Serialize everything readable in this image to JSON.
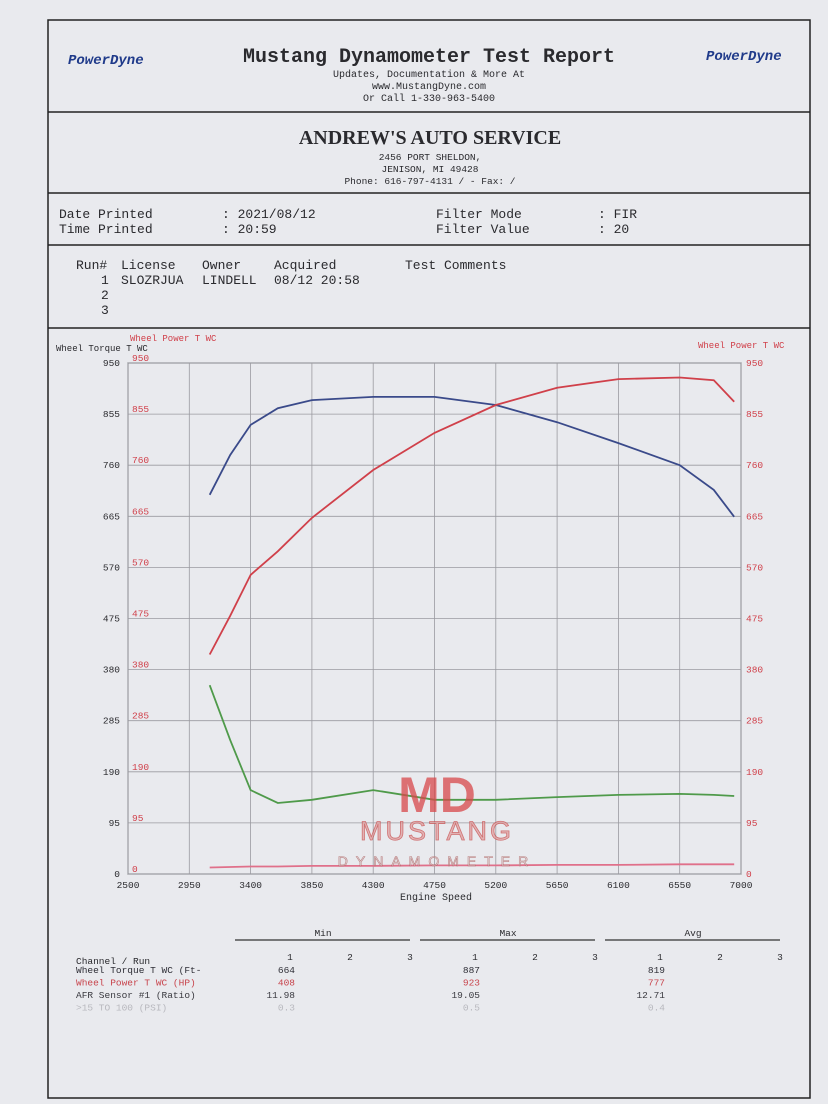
{
  "header": {
    "logo_left": "PowerDyne",
    "logo_right": "PowerDyne",
    "title": "Mustang Dynamometer Test Report",
    "lines": [
      "Updates, Documentation & More At",
      "www.MustangDyne.com",
      "Or Call 1-330-963-5400"
    ]
  },
  "shop": {
    "name": "ANDREW'S AUTO SERVICE",
    "lines": [
      "2456 PORT SHELDON,",
      "JENISON, MI  49428",
      "Phone: 616-797-4131 /  - Fax:  /"
    ]
  },
  "print_info": {
    "date_label": "Date Printed",
    "date": ": 2021/08/12",
    "time_label": "Time Printed",
    "time": ": 20:59",
    "filter_mode_label": "Filter Mode",
    "filter_mode": ": FIR",
    "filter_value_label": "Filter Value",
    "filter_value": ": 20"
  },
  "runs": {
    "columns": [
      "Run#",
      "License",
      "Owner",
      "Acquired",
      "Test Comments"
    ],
    "rows": [
      [
        "1",
        "SLOZRJUA",
        "LINDELL",
        "08/12 20:58"
      ],
      [
        "2"
      ],
      [
        "3"
      ]
    ]
  },
  "chart_data": {
    "type": "line",
    "x_label": "Engine Speed",
    "y_label": "Wheel Torque T WC",
    "y2_label": "Wheel Power T WC",
    "xlim": [
      2500,
      7000
    ],
    "xticks": [
      2500,
      2950,
      3400,
      3850,
      4300,
      4750,
      5200,
      5650,
      6100,
      6550,
      7000
    ],
    "ylim": [
      0,
      950
    ],
    "yticks": [
      0,
      95,
      190,
      285,
      380,
      475,
      570,
      665,
      760,
      855,
      950
    ],
    "y2lim": [
      0,
      950
    ],
    "y2ticks": [
      0,
      95,
      190,
      285,
      380,
      475,
      570,
      665,
      760,
      855,
      950
    ],
    "grid": true,
    "x": [
      3100,
      3250,
      3400,
      3600,
      3850,
      4300,
      4750,
      5200,
      5650,
      6100,
      6550,
      6800,
      6950
    ],
    "series": [
      {
        "color": "#3a4a8a",
        "values": [
          705,
          779,
          835,
          866,
          881,
          887,
          887,
          872,
          840,
          801,
          760,
          714,
          664
        ]
      },
      {
        "color": "#d0404a",
        "axis": "y2",
        "values": [
          408,
          480,
          556,
          600,
          662,
          751,
          820,
          872,
          904,
          920,
          923,
          918,
          878
        ]
      },
      {
        "color": "#4f9a4a",
        "values": [
          351,
          249,
          156,
          132,
          138,
          156,
          138,
          138,
          143,
          147,
          149,
          147,
          145
        ]
      },
      {
        "color": "#e0708a",
        "values": [
          12,
          13,
          14,
          14,
          15,
          15,
          16,
          16,
          17,
          17,
          18,
          18,
          18
        ]
      }
    ]
  },
  "watermark": {
    "mark": "MD",
    "name": "MUSTANG",
    "sub": "DYNAMOMETER"
  },
  "summary": {
    "header": "Channel / Run",
    "groups": [
      "Min",
      "Max",
      "Avg"
    ],
    "runs": [
      "1",
      "2",
      "3"
    ],
    "rows": [
      {
        "channel": "Wheel Torque T WC (Ft-",
        "color": "#2e2e36",
        "values": [
          664,
          887,
          819
        ]
      },
      {
        "channel": "Wheel Power T WC (HP)",
        "color": "#c8444c",
        "values": [
          408,
          923,
          777
        ]
      },
      {
        "channel": "AFR Sensor #1 (Ratio)",
        "color": "#3a3a40",
        "values": [
          11.98,
          19.05,
          12.71
        ]
      },
      {
        "channel": ">15 TO 100 (PSI)",
        "color": "#b8b8be",
        "values": [
          0.3,
          0.5,
          0.4
        ]
      }
    ]
  }
}
